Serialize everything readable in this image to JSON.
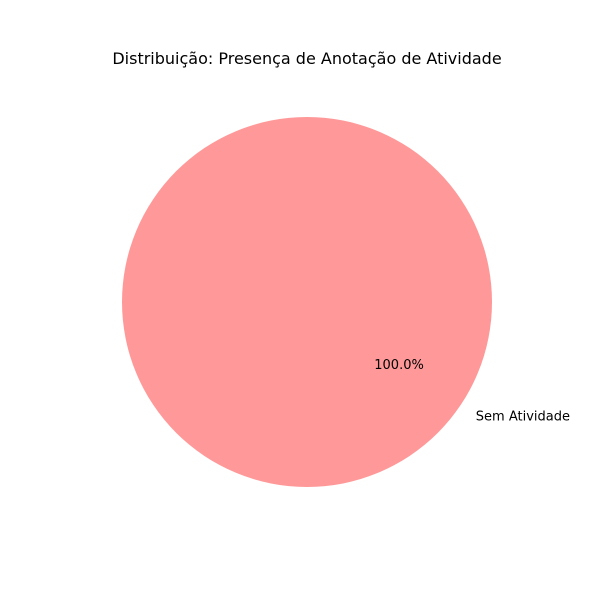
{
  "chart_data": {
    "type": "pie",
    "title": "Distribuição: Presença de Anotação de Atividade",
    "categories": [
      "Sem Atividade"
    ],
    "values": [
      100.0
    ],
    "percent_labels": [
      "100.0%"
    ],
    "colors": [
      "#ff9999"
    ]
  }
}
